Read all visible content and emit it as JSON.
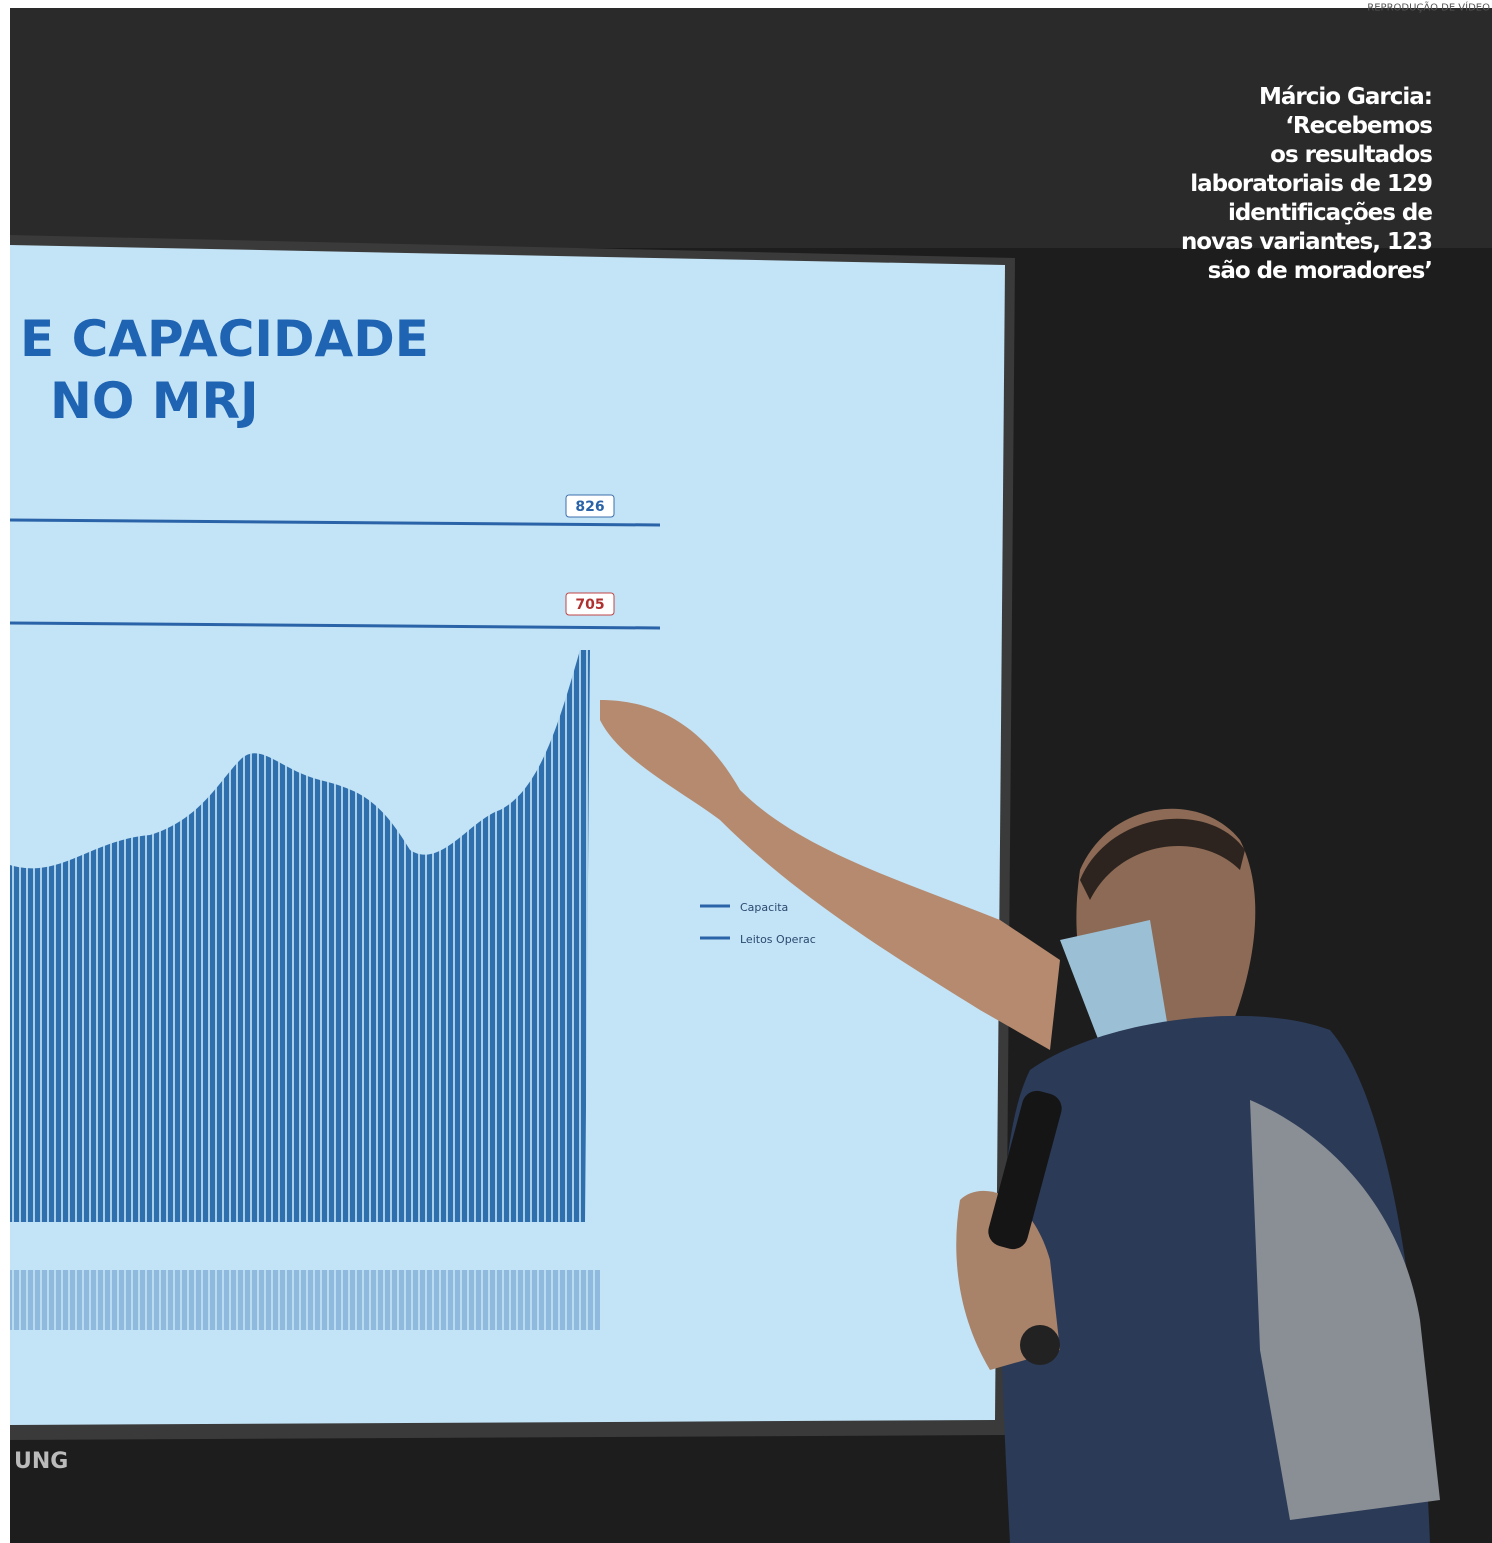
{
  "credit": "REPRODUÇÃO DE VÍDEO",
  "caption": {
    "lines": [
      "Márcio Garcia:",
      "‘Recebemos",
      "os resultados",
      "laboratoriais de 129",
      "identificações de",
      "novas variantes, 123",
      "são de moradores’"
    ]
  },
  "slide": {
    "title_lines": [
      "E CAPACIDADE",
      "NO MRJ"
    ],
    "reference_labels": [
      "826",
      "705"
    ],
    "legend": [
      "Capacita",
      "Leitos Operac"
    ],
    "brand": "UNG"
  }
}
